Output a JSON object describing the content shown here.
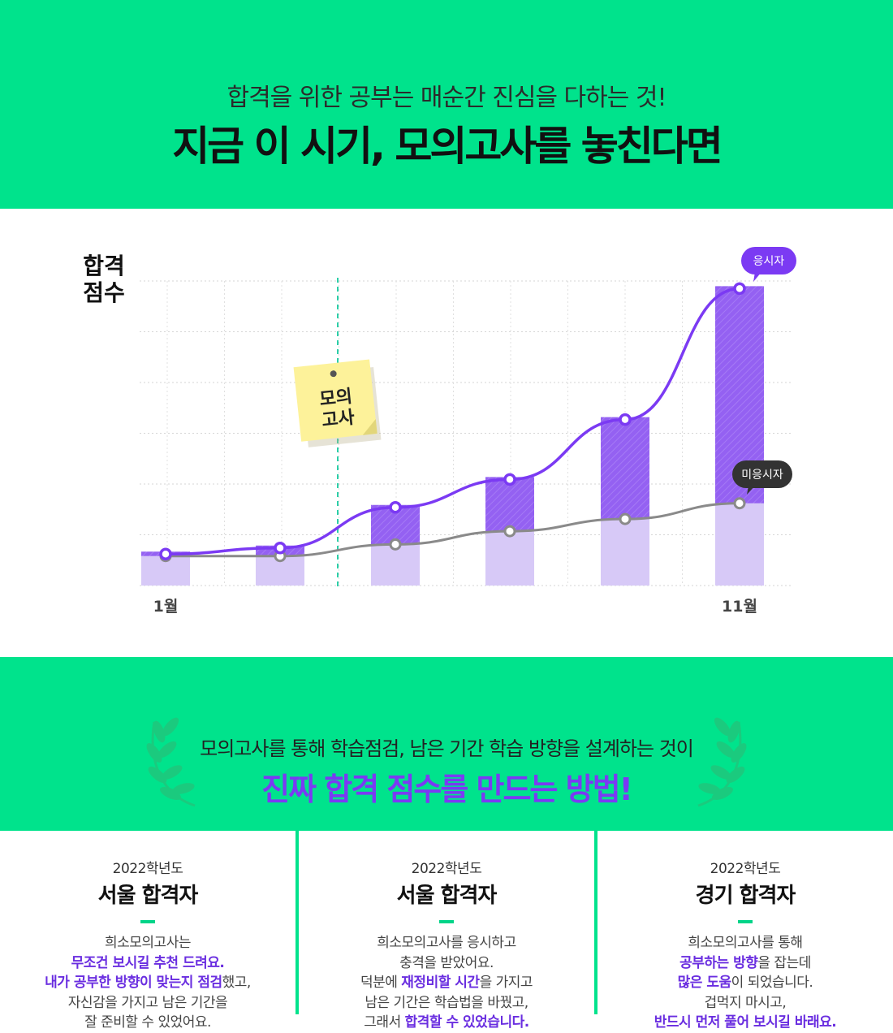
{
  "header": {
    "subtitle": "합격을 위한 공부는 매순간 진심을 다하는 것!",
    "title": "지금 이 시기, 모의고사를 놓친다면"
  },
  "chart_data": {
    "type": "bar",
    "ylabel_line1": "합격",
    "ylabel_line2": "점수",
    "x_start_label": "1월",
    "x_end_label": "11월",
    "marker_line1": "모의",
    "marker_line2": "고사",
    "ylim": [
      0,
      6
    ],
    "series": [
      {
        "name": "응시자",
        "values": [
          0.62,
          0.74,
          1.54,
          2.09,
          3.27,
          5.85
        ]
      },
      {
        "name": "미응시자",
        "values": [
          0.58,
          0.58,
          0.81,
          1.07,
          1.31,
          1.62
        ]
      }
    ],
    "grid": true
  },
  "banner": {
    "subtitle": "모의고사를 통해 학습점검, 남은 기간 학습 방향을 설계하는 것이",
    "title": "진짜 합격 점수를 만드는 방법!"
  },
  "cards": [
    {
      "year": "2022학년도",
      "title": "서울 합격자",
      "lines": [
        [
          {
            "t": "희소모의고사는",
            "h": false
          }
        ],
        [
          {
            "t": "무조건 보시길 추천 드려요.",
            "h": true
          }
        ],
        [
          {
            "t": "내가 공부한 방향이 맞는지 점검",
            "h": true
          },
          {
            "t": "했고,",
            "h": false
          }
        ],
        [
          {
            "t": "자신감을 가지고 남은 기간을",
            "h": false
          }
        ],
        [
          {
            "t": "잘 준비할 수 있었어요.",
            "h": false
          }
        ]
      ]
    },
    {
      "year": "2022학년도",
      "title": "서울 합격자",
      "lines": [
        [
          {
            "t": "희소모의고사를 응시하고",
            "h": false
          }
        ],
        [
          {
            "t": "충격을 받았어요.",
            "h": false
          }
        ],
        [
          {
            "t": "덕분에 ",
            "h": false
          },
          {
            "t": "재정비할 시간",
            "h": true
          },
          {
            "t": "을 가지고",
            "h": false
          }
        ],
        [
          {
            "t": "남은 기간은 학습법을 바꿨고,",
            "h": false
          }
        ],
        [
          {
            "t": "그래서 ",
            "h": false
          },
          {
            "t": "합격할 수 있었습니다.",
            "h": true
          }
        ]
      ]
    },
    {
      "year": "2022학년도",
      "title": "경기 합격자",
      "lines": [
        [
          {
            "t": "희소모의고사를 통해",
            "h": false
          }
        ],
        [
          {
            "t": "공부하는 방향",
            "h": true
          },
          {
            "t": "을 잡는데",
            "h": false
          }
        ],
        [
          {
            "t": "많은 도움",
            "h": true
          },
          {
            "t": "이 되었습니다.",
            "h": false
          }
        ],
        [
          {
            "t": "겁먹지 마시고,",
            "h": false
          }
        ],
        [
          {
            "t": "반드시 먼저 풀어 보시길 바래요.",
            "h": true
          }
        ]
      ]
    }
  ],
  "colors": {
    "green": "#00e38c",
    "purple": "#7b3af3",
    "light_purple": "#d7c9f7",
    "gray_line": "#8a8a8a"
  }
}
